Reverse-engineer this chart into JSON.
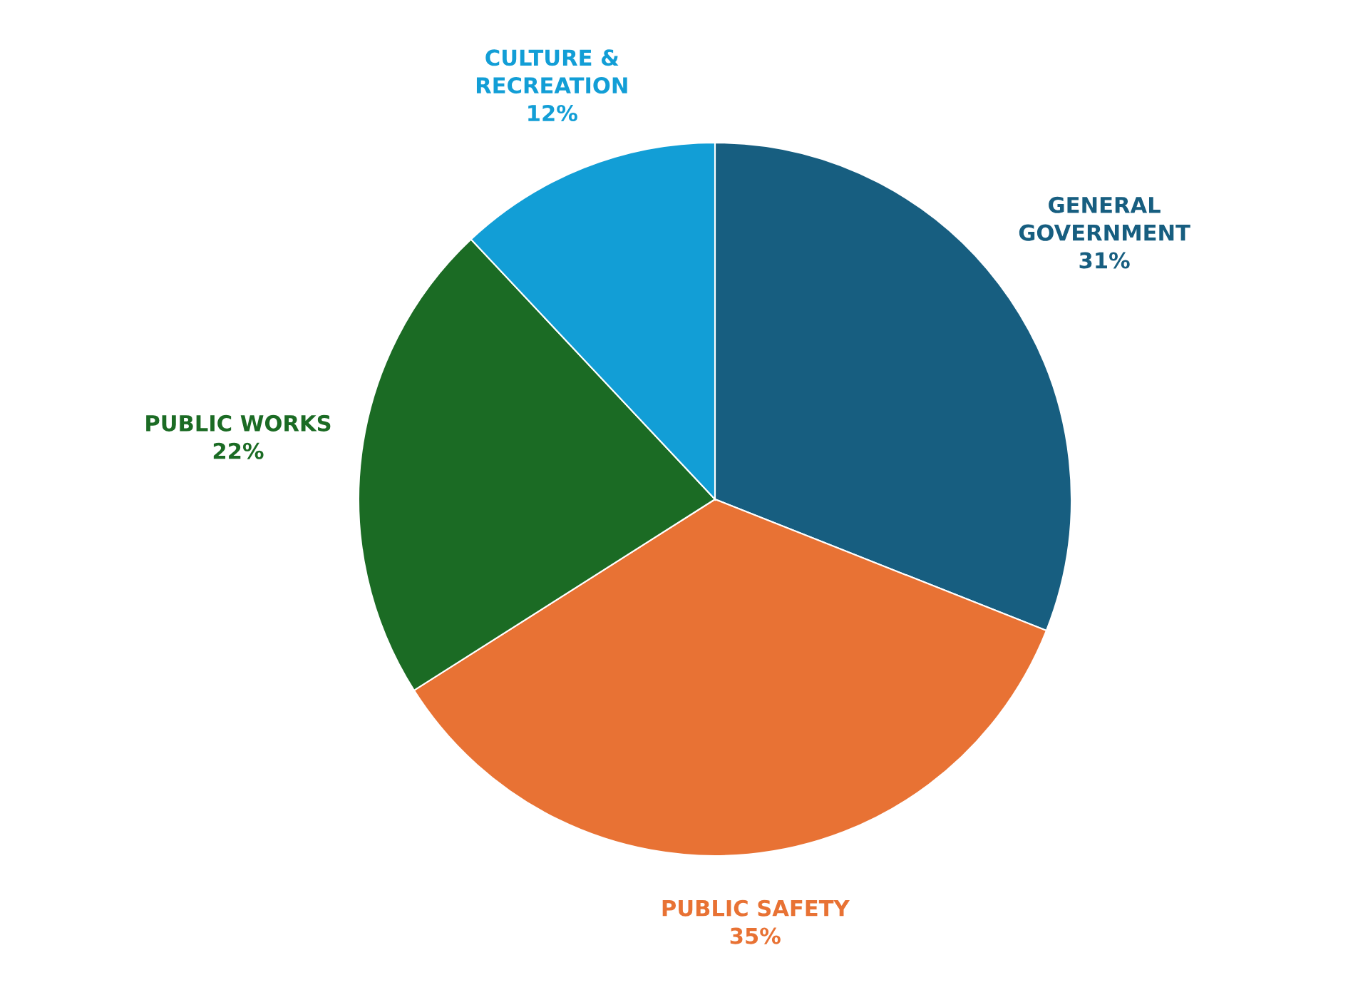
{
  "chart_data": {
    "type": "pie",
    "categories": [
      "GENERAL\nGOVERNMENT",
      "PUBLIC SAFETY",
      "PUBLIC WORKS",
      "CULTURE &\nRECREATION"
    ],
    "values": [
      31,
      35,
      22,
      12
    ],
    "value_labels": [
      "31%",
      "35%",
      "22%",
      "12%"
    ],
    "colors": [
      "#175e80",
      "#e87234",
      "#1b6b24",
      "#129ed6"
    ]
  }
}
